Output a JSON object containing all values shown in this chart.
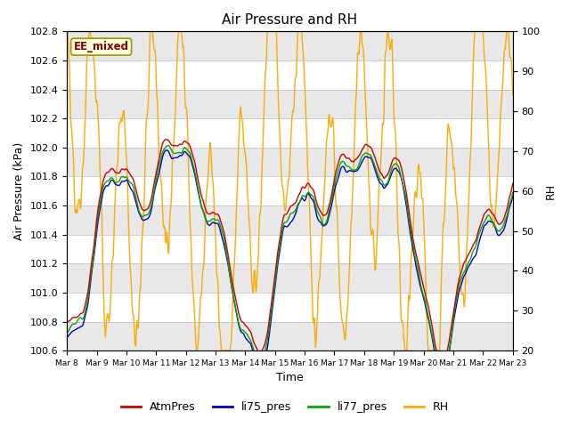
{
  "title": "Air Pressure and RH",
  "xlabel": "Time",
  "ylabel_left": "Air Pressure (kPa)",
  "ylabel_right": "RH",
  "ylim_left": [
    100.6,
    102.8
  ],
  "ylim_right": [
    20,
    100
  ],
  "yticks_left": [
    100.6,
    100.8,
    101.0,
    101.2,
    101.4,
    101.6,
    101.8,
    102.0,
    102.2,
    102.4,
    102.6,
    102.8
  ],
  "yticks_right": [
    20,
    30,
    40,
    50,
    60,
    70,
    80,
    90,
    100
  ],
  "xtick_labels": [
    "Mar 8",
    "Mar 9",
    "Mar 10",
    "Mar 11",
    "Mar 12",
    "Mar 13",
    "Mar 14",
    "Mar 15",
    "Mar 16",
    "Mar 17",
    "Mar 18",
    "Mar 19",
    "Mar 20",
    "Mar 21",
    "Mar 22",
    "Mar 23"
  ],
  "legend_labels": [
    "AtmPres",
    "li75_pres",
    "li77_pres",
    "RH"
  ],
  "colors": {
    "AtmPres": "#cc0000",
    "li75_pres": "#0000cc",
    "li77_pres": "#00aa00",
    "RH": "#ffaa00"
  },
  "annotation_text": "EE_mixed",
  "annotation_color": "#8b0000",
  "annotation_bg": "#ffffdd",
  "annotation_edge": "#999900",
  "bg_band_color": "#e8e8e8",
  "line_width": 1.0,
  "n_days": 15,
  "samples_per_day": 48
}
